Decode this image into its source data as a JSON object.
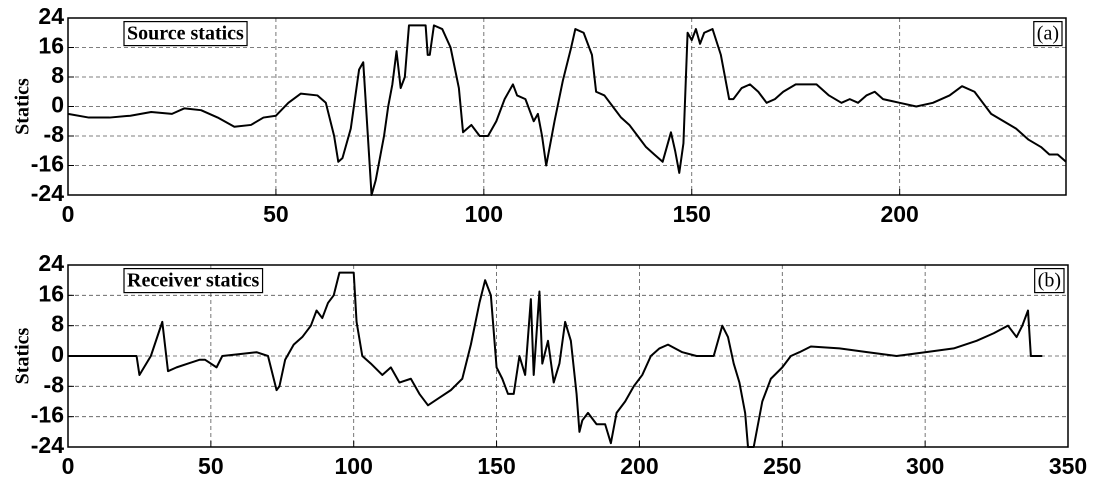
{
  "chart_data": [
    {
      "type": "line",
      "title": "Source statics",
      "annotation": "(a)",
      "y_label": "Statics",
      "x": [
        0,
        5,
        10,
        15,
        20,
        25,
        28,
        32,
        36,
        40,
        44,
        47,
        50,
        53,
        56,
        60,
        62,
        64,
        65,
        66,
        68,
        70,
        71,
        72,
        73,
        74,
        76,
        77,
        78,
        79,
        80,
        81,
        82,
        84,
        86,
        86.5,
        87,
        88,
        90,
        92,
        94,
        95,
        97,
        99,
        101,
        103,
        105,
        107,
        108,
        110,
        112,
        113,
        114,
        115,
        116,
        117,
        119,
        121,
        122,
        124,
        126,
        127,
        129,
        131,
        133,
        135,
        137,
        139,
        141,
        143,
        145,
        146,
        147,
        148,
        149,
        150,
        151,
        152,
        153,
        155,
        157,
        159,
        160,
        162,
        164,
        166,
        168,
        170,
        172,
        175,
        180,
        183,
        186,
        188,
        190,
        192,
        194,
        196,
        200,
        204,
        208,
        212,
        215,
        218,
        220,
        222,
        225,
        228,
        231,
        234,
        236,
        238,
        240
      ],
      "series": [
        {
          "color": "#000000",
          "values": [
            -2,
            -3,
            -3,
            -2.5,
            -1.5,
            -2,
            -0.5,
            -1,
            -3,
            -5.5,
            -5,
            -3,
            -2.5,
            1,
            3.5,
            3,
            1,
            -8,
            -15,
            -14,
            -6,
            10,
            12,
            -6,
            -24,
            -20,
            -8,
            0,
            6,
            15,
            5,
            8,
            22,
            22,
            22,
            14,
            14,
            22,
            21,
            16,
            5,
            -7,
            -5,
            -8,
            -8,
            -4,
            2,
            6,
            3,
            2,
            -4,
            -2,
            -8,
            -16,
            -10,
            -4,
            7,
            16,
            21,
            20,
            14,
            4,
            3,
            0,
            -3,
            -5,
            -8,
            -11,
            -13,
            -15,
            -7,
            -12,
            -18,
            -10,
            20,
            18,
            21,
            17,
            20,
            21,
            14,
            2,
            2,
            5,
            6,
            4,
            1,
            2,
            4,
            6,
            6,
            3,
            1,
            2,
            1,
            3,
            4,
            2,
            1,
            0,
            1,
            3,
            5.5,
            4,
            1,
            -2,
            -4,
            -6,
            -9,
            -11,
            -13,
            -13,
            -15
          ]
        }
      ],
      "xlim": [
        0,
        240
      ],
      "ylim": [
        -24,
        24
      ],
      "xticks": [
        0,
        50,
        100,
        150,
        200
      ],
      "yticks": [
        -24,
        -16,
        -8,
        0,
        8,
        16,
        24
      ],
      "grid": true
    },
    {
      "type": "line",
      "title": "Receiver statics",
      "annotation": "(b)",
      "y_label": "Statics",
      "x": [
        0,
        24,
        25,
        29,
        33,
        35,
        38,
        42,
        46,
        48,
        50,
        52,
        54,
        60,
        66,
        70,
        73,
        74,
        76,
        79,
        82,
        85,
        87,
        89,
        91,
        93,
        95,
        100,
        101,
        103,
        106,
        110,
        113,
        116,
        120,
        123,
        126,
        130,
        134,
        138,
        141,
        144,
        146,
        148,
        150,
        152,
        154,
        156,
        158,
        160,
        162,
        163,
        165,
        166,
        168,
        170,
        172,
        174,
        176,
        178,
        179,
        180,
        182,
        185,
        188,
        190,
        192,
        195,
        198,
        201,
        204,
        207,
        210,
        215,
        220,
        226,
        229,
        231,
        233,
        235,
        237,
        238,
        240,
        243,
        246,
        250,
        253,
        256,
        260,
        270,
        280,
        290,
        300,
        310,
        318,
        324,
        329,
        332,
        334,
        336,
        337,
        341
      ],
      "series": [
        {
          "color": "#000000",
          "values": [
            0,
            0,
            -5,
            0,
            9,
            -4,
            -3,
            -2,
            -1,
            -1,
            -2,
            -3,
            0,
            0.5,
            1,
            0,
            -9,
            -8,
            -1,
            3,
            5,
            8,
            12,
            10,
            14,
            16,
            22,
            22,
            9,
            0,
            -2,
            -5,
            -3,
            -7,
            -6,
            -10,
            -13,
            -11,
            -9,
            -6,
            3,
            14,
            20,
            16,
            -3,
            -6,
            -10,
            -10,
            0,
            -5,
            15,
            -5,
            17,
            -2,
            4,
            -7,
            -2,
            9,
            4,
            -10,
            -20,
            -17,
            -15,
            -18,
            -18,
            -23,
            -15,
            -12,
            -8,
            -5,
            0,
            2,
            3,
            1,
            0,
            0,
            8,
            5,
            -2,
            -7,
            -15,
            -24,
            -24,
            -12,
            -6,
            -3,
            0,
            1,
            2.5,
            2,
            1,
            0,
            1,
            2,
            4,
            6,
            8,
            5,
            8,
            12,
            0,
            0
          ]
        }
      ],
      "xlim": [
        0,
        350
      ],
      "ylim": [
        -24,
        24
      ],
      "xticks": [
        0,
        50,
        100,
        150,
        200,
        250,
        300,
        350
      ],
      "yticks": [
        -24,
        -16,
        -8,
        0,
        8,
        16,
        24
      ],
      "grid": true
    }
  ]
}
